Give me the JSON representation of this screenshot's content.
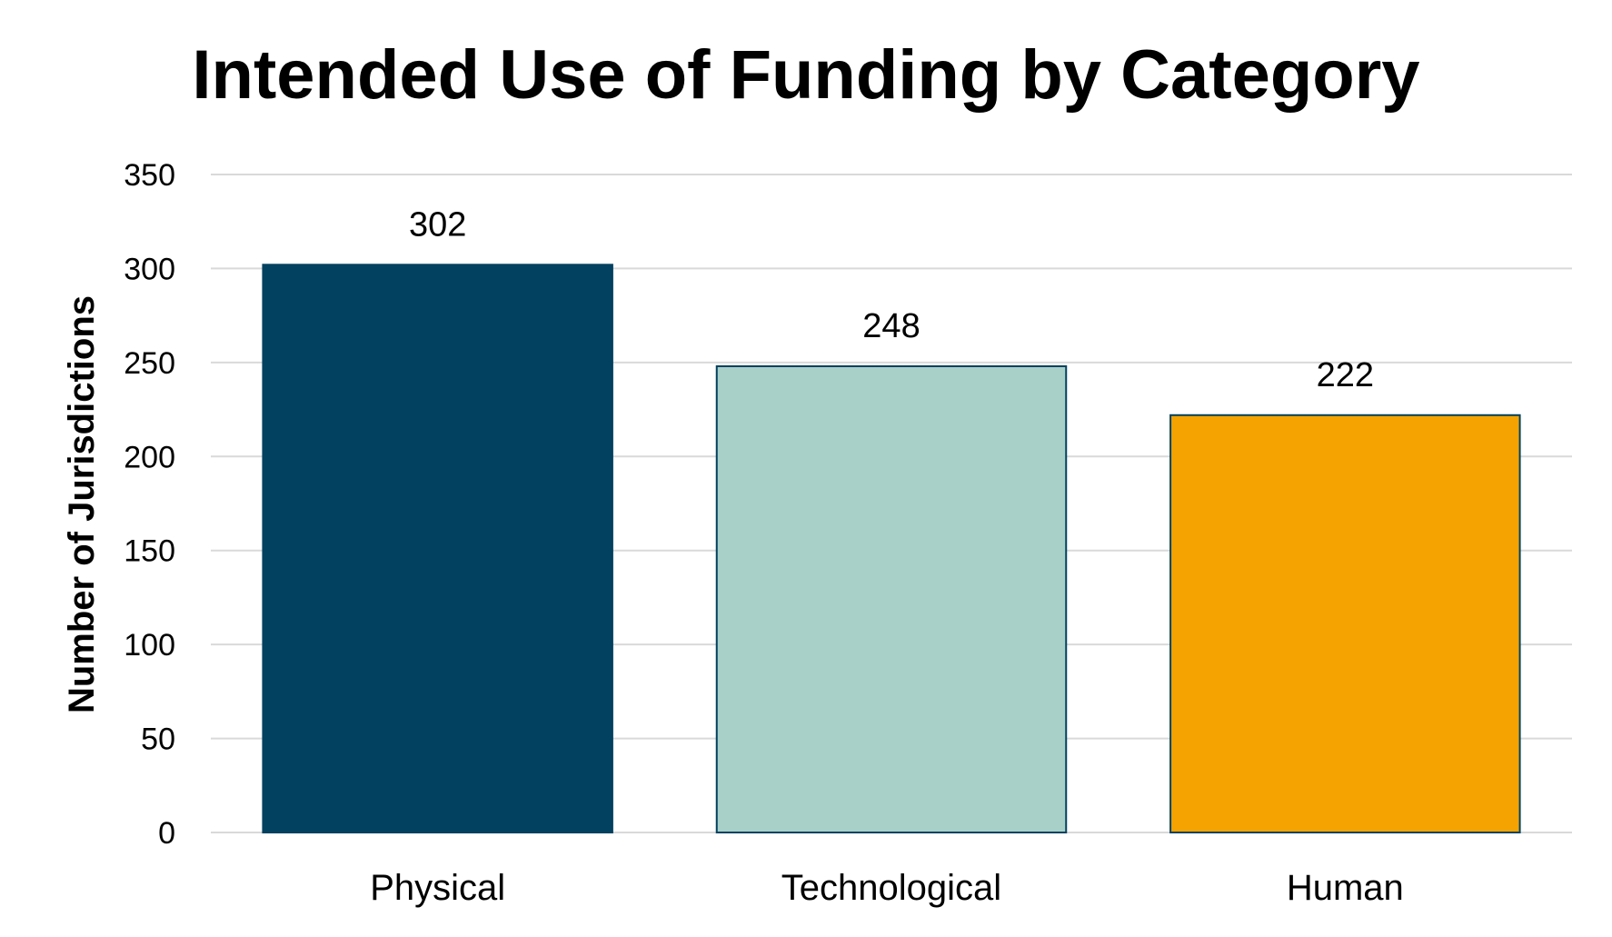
{
  "chart_data": {
    "type": "bar",
    "title": "Intended Use of Funding by Category",
    "xlabel": "",
    "ylabel": "Number of Jurisdictions",
    "categories": [
      "Physical",
      "Technological",
      "Human"
    ],
    "values": [
      302,
      248,
      222
    ],
    "data_labels": [
      "302",
      "248",
      "222"
    ],
    "colors": [
      "#02415f",
      "#a8d0c8",
      "#f4a300"
    ],
    "bar_border_color": "#02415f",
    "ylim": [
      0,
      350
    ],
    "yticks": [
      0,
      50,
      100,
      150,
      200,
      250,
      300,
      350
    ],
    "ytick_labels": [
      "0",
      "50",
      "100",
      "150",
      "200",
      "250",
      "300",
      "350"
    ],
    "grid": true,
    "legend": "none"
  }
}
